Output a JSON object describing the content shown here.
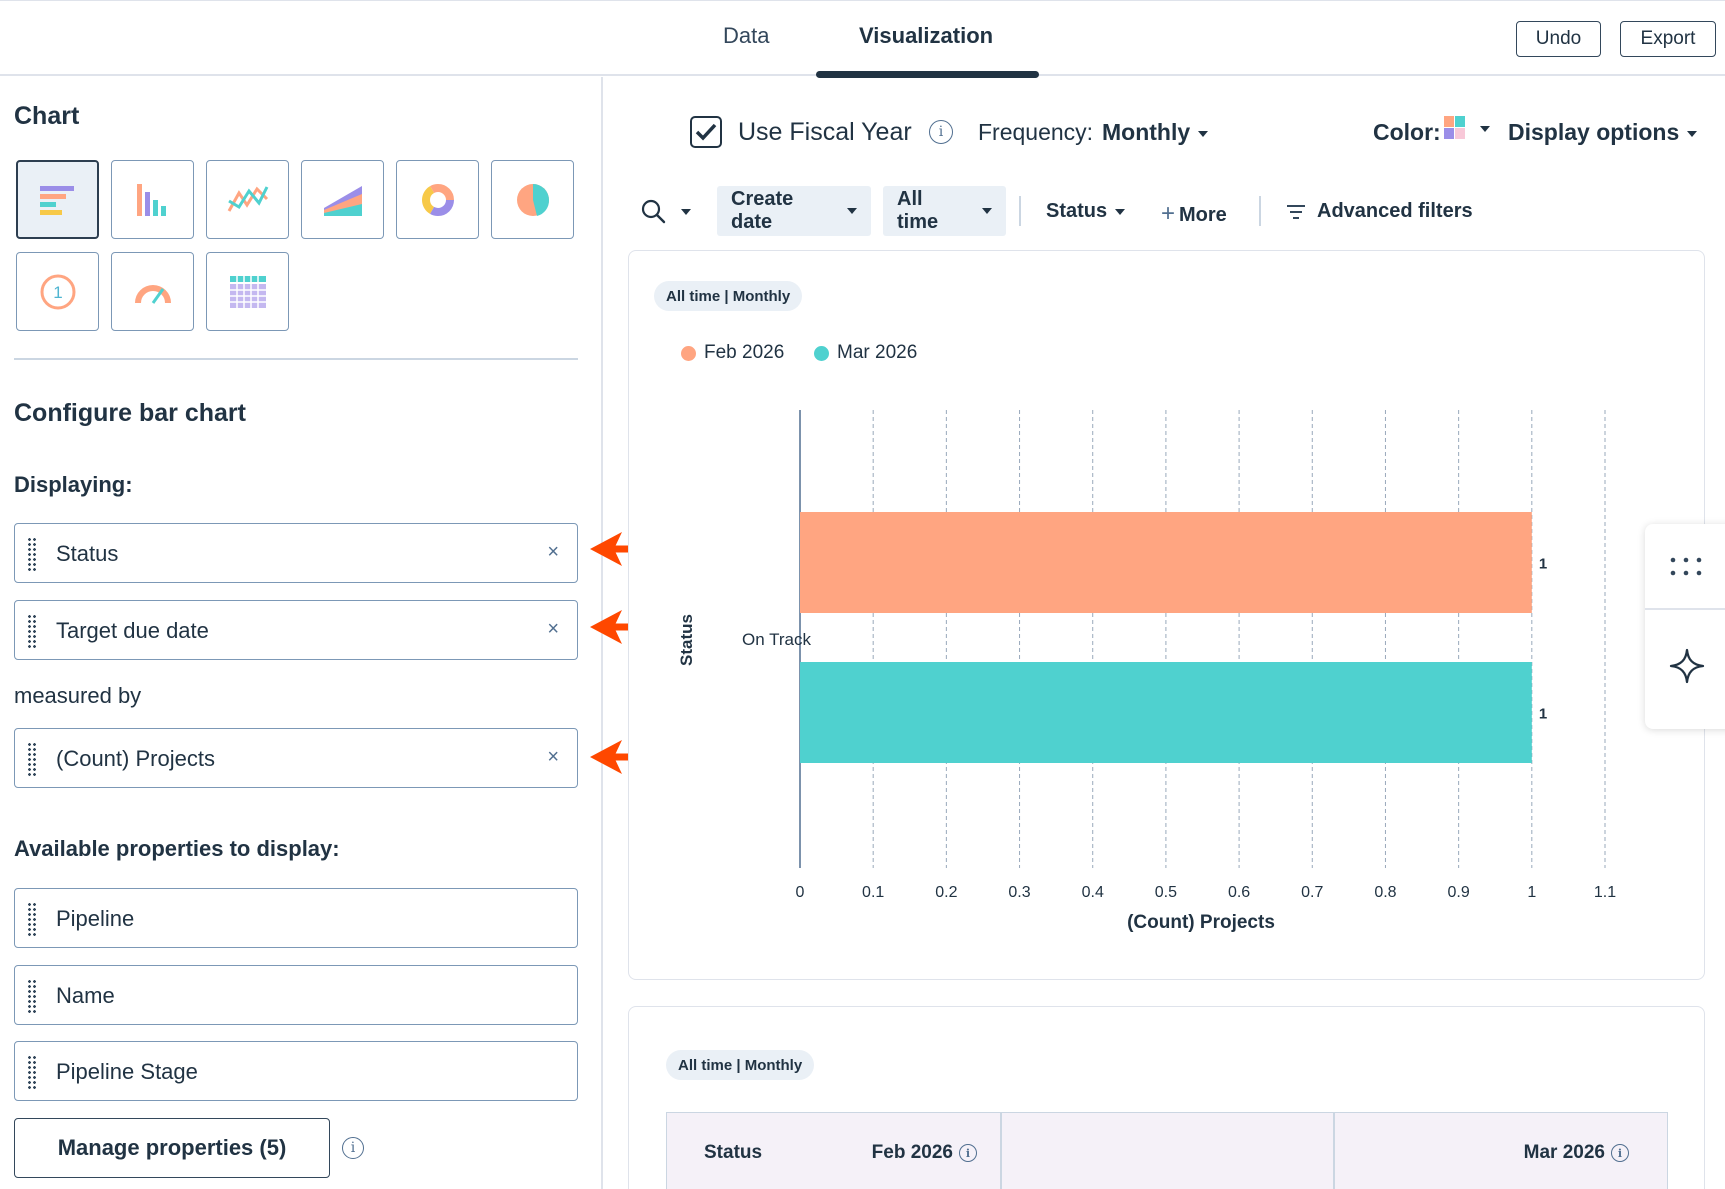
{
  "tabs": [
    {
      "label": "Data"
    },
    {
      "label": "Visualization"
    }
  ],
  "top_buttons": {
    "undo": "Undo",
    "export": "Export"
  },
  "left": {
    "chart_heading": "Chart",
    "chart_types": [
      "horizontal-bar",
      "vertical-bar",
      "line",
      "area",
      "donut",
      "pie",
      "summary",
      "gauge",
      "pivot-table"
    ],
    "configure_heading": "Configure bar chart",
    "displaying_label": "Displaying:",
    "displaying_fields": [
      "Status",
      "Target due date"
    ],
    "measured_by_label": "measured by",
    "measure_fields": [
      "(Count) Projects"
    ],
    "available_label": "Available properties to display:",
    "available_fields": [
      "Pipeline",
      "Name",
      "Pipeline Stage"
    ],
    "manage_button": "Manage properties (5)",
    "remove_glyph": "×"
  },
  "options_bar": {
    "fiscal_year_label": "Use Fiscal Year",
    "fiscal_year_checked": true,
    "frequency_label": "Frequency:",
    "frequency_value": "Monthly",
    "color_label": "Color:",
    "display_options": "Display options"
  },
  "filters": {
    "create_date": "Create date",
    "all_time": "All time",
    "status": "Status",
    "more": "More",
    "advanced": "Advanced filters"
  },
  "chart_card": {
    "pill": "All time | Monthly"
  },
  "table_card": {
    "pill": "All time | Monthly",
    "headers": [
      "Status",
      "Feb 2026",
      "Mar 2026"
    ]
  },
  "colors": {
    "series_feb": "#ffa581",
    "series_mar": "#4fd1cf",
    "arrow": "#ff4800",
    "text": "#213343"
  },
  "chart_data": {
    "type": "bar",
    "orientation": "horizontal",
    "categories": [
      "On Track"
    ],
    "series": [
      {
        "name": "Feb 2026",
        "values": [
          1
        ]
      },
      {
        "name": "Mar 2026",
        "values": [
          1
        ]
      }
    ],
    "data_labels": [
      "1",
      "1"
    ],
    "xlabel": "(Count) Projects",
    "ylabel": "Status",
    "xlim": [
      0,
      1.1
    ],
    "ticks": [
      "0",
      "0.1",
      "0.2",
      "0.3",
      "0.4",
      "0.5",
      "0.6",
      "0.7",
      "0.8",
      "0.9",
      "1",
      "1.1"
    ],
    "grid": true,
    "legend_position": "top-left"
  }
}
